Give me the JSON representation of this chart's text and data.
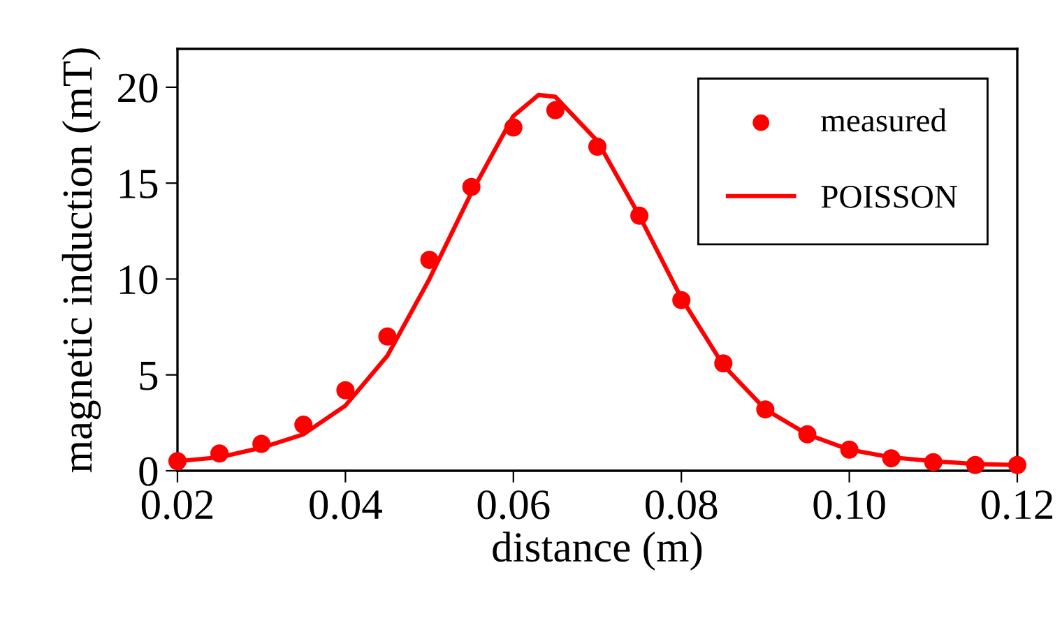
{
  "chart_data": {
    "type": "scatter",
    "xlabel": "distance (m)",
    "ylabel": "magnetic induction (mT)",
    "xlim": [
      0.02,
      0.12
    ],
    "xticks": [
      0.02,
      0.04,
      0.06,
      0.08,
      {
        "value": 0.1,
        "label": "0.10"
      },
      0.12
    ],
    "ylim": [
      0,
      22
    ],
    "yticks": [
      0,
      5,
      10,
      15,
      20
    ],
    "grid": false,
    "legend": "top right",
    "series": [
      {
        "name": "measured",
        "marker": "circle",
        "color": "#ff0000",
        "x": [
          0.02,
          0.025,
          0.03,
          0.035,
          0.04,
          0.045,
          0.05,
          0.055,
          0.06,
          0.065,
          0.07,
          0.075,
          0.08,
          0.085,
          0.09,
          0.095,
          0.1,
          0.105,
          0.11,
          0.115,
          0.12
        ],
        "values": [
          0.5,
          0.9,
          1.4,
          2.4,
          4.2,
          7.0,
          11.0,
          14.8,
          17.9,
          18.8,
          16.9,
          13.3,
          8.9,
          5.6,
          3.2,
          1.9,
          1.1,
          0.65,
          0.45,
          0.3,
          0.3
        ]
      },
      {
        "name": "POISSON",
        "type": "line",
        "line_style": "solid",
        "color": "#ff0000",
        "x": [
          0.02,
          0.025,
          0.03,
          0.035,
          0.04,
          0.045,
          0.05,
          0.055,
          0.06,
          0.063,
          0.065,
          0.07,
          0.075,
          0.08,
          0.085,
          0.09,
          0.095,
          0.1,
          0.105,
          0.11,
          0.115,
          0.12
        ],
        "values": [
          0.5,
          0.7,
          1.2,
          1.9,
          3.4,
          6.0,
          10.0,
          14.5,
          18.5,
          19.6,
          19.5,
          17.2,
          13.3,
          9.0,
          5.5,
          3.2,
          1.9,
          1.1,
          0.7,
          0.5,
          0.35,
          0.3
        ]
      }
    ]
  }
}
